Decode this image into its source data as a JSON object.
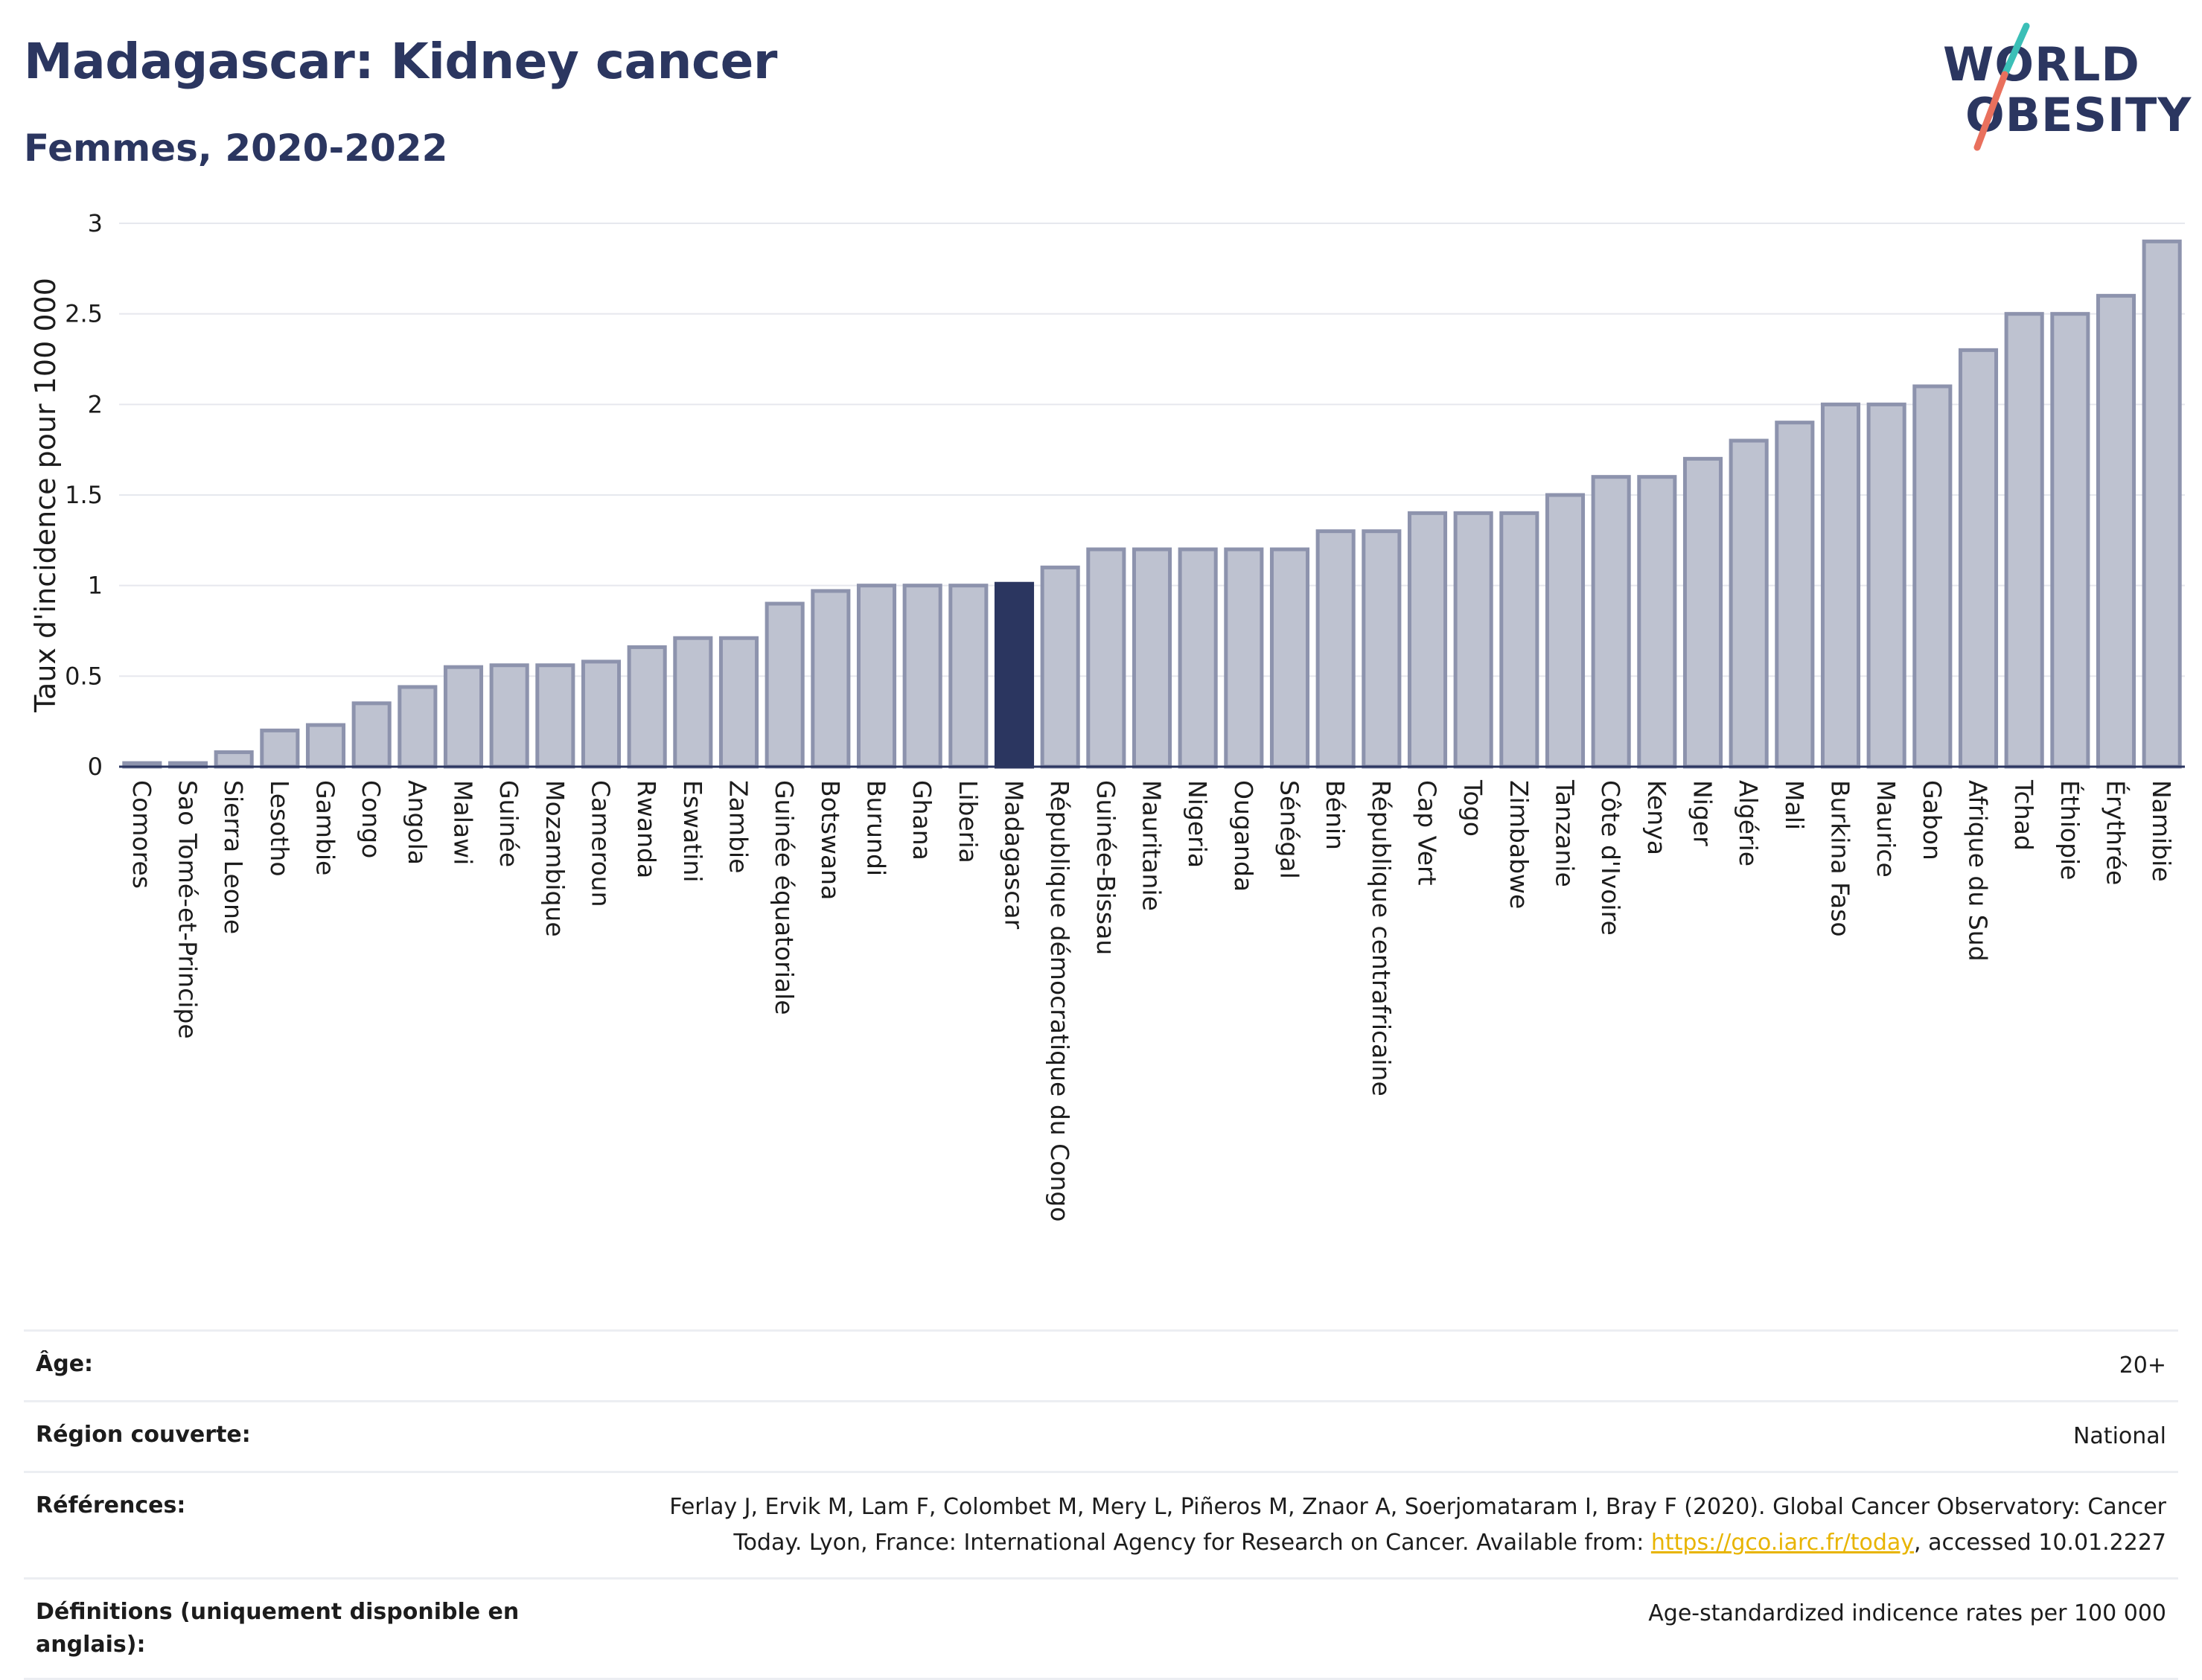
{
  "header": {
    "title": "Madagascar: Kidney cancer",
    "subtitle": "Femmes, 2020-2022"
  },
  "logo": {
    "line1": "WORLD",
    "line2": "OBESITY",
    "accent_colors": [
      "#3bbfb7",
      "#e9705d"
    ]
  },
  "chart_data": {
    "type": "bar",
    "ylabel": "Taux d'incidence pour 100 000",
    "xlabel": "",
    "ylim": [
      0,
      3
    ],
    "yticks": [
      0,
      0.5,
      1,
      1.5,
      2,
      2.5,
      3
    ],
    "grid": true,
    "highlight": "Madagascar",
    "colors": {
      "bar": "#bec2d0",
      "bar_edge": "#8d93ad",
      "highlight": "#2b3660"
    },
    "categories": [
      "Comores",
      "Sao Tomé-et-Principe",
      "Sierra Leone",
      "Lesotho",
      "Gambie",
      "Congo",
      "Angola",
      "Malawi",
      "Guinée",
      "Mozambique",
      "Cameroun",
      "Rwanda",
      "Eswatini",
      "Zambie",
      "Guinée équatoriale",
      "Botswana",
      "Burundi",
      "Ghana",
      "Liberia",
      "Madagascar",
      "République démocratique du Congo",
      "Guinée-Bissau",
      "Mauritanie",
      "Nigeria",
      "Ouganda",
      "Sénégal",
      "Bénin",
      "République centrafricaine",
      "Cap Vert",
      "Togo",
      "Zimbabwe",
      "Tanzanie",
      "Côte d'Ivoire",
      "Kenya",
      "Niger",
      "Algérie",
      "Mali",
      "Burkina Faso",
      "Maurice",
      "Gabon",
      "Afrique du Sud",
      "Tchad",
      "Éthiopie",
      "Érythrée",
      "Namibie"
    ],
    "values": [
      0.02,
      0.02,
      0.08,
      0.2,
      0.23,
      0.35,
      0.44,
      0.55,
      0.56,
      0.56,
      0.58,
      0.66,
      0.71,
      0.71,
      0.9,
      0.97,
      1.0,
      1.0,
      1.0,
      1.01,
      1.1,
      1.2,
      1.2,
      1.2,
      1.2,
      1.2,
      1.3,
      1.3,
      1.4,
      1.4,
      1.4,
      1.5,
      1.6,
      1.6,
      1.7,
      1.8,
      1.9,
      2.0,
      2.0,
      2.1,
      2.3,
      2.5,
      2.5,
      2.6,
      2.9
    ]
  },
  "info": [
    {
      "label": "Âge:",
      "value": "20+"
    },
    {
      "label": "Région couverte:",
      "value": "National"
    },
    {
      "label": "Références:",
      "value_line1": "Ferlay J, Ervik M, Lam F, Colombet M, Mery L, Piñeros M, Znaor A, Soerjomataram I, Bray F (2020). Global Cancer Observatory: Cancer",
      "value_line2_pre": "Today. Lyon, France: International Agency for Research on Cancer. Available from: ",
      "link": "https://gco.iarc.fr/today",
      "value_line2_post": ", accessed 10.01.2227"
    },
    {
      "label": "Définitions (uniquement disponible en anglais):",
      "value": "Age-standardized indicence rates per 100 000"
    }
  ]
}
